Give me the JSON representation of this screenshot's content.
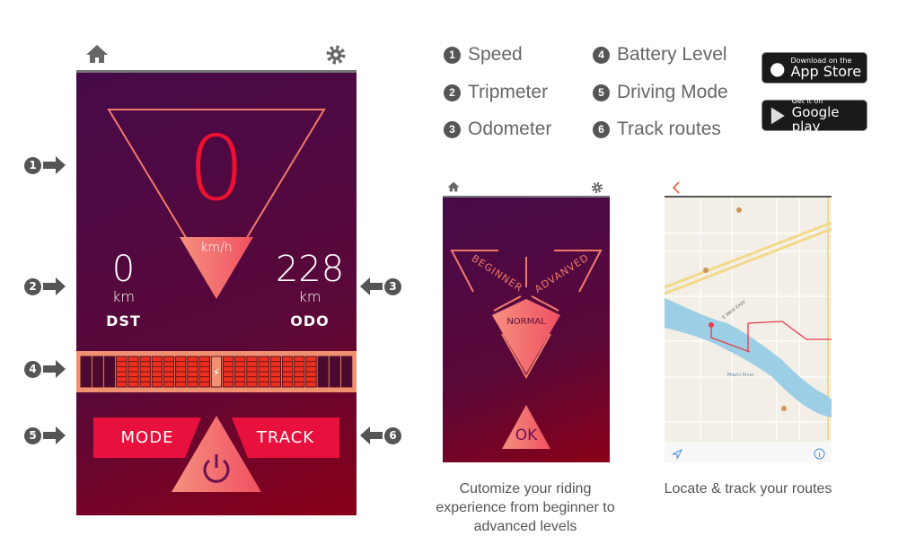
{
  "main_screen": {
    "speed": "0",
    "speed_unit": "km/h",
    "trip": {
      "value": "0",
      "unit": "km",
      "label": "DST"
    },
    "odo": {
      "value": "228",
      "unit": "km",
      "label": "ODO"
    },
    "battery_segments_filled": 17,
    "battery_segments_total": 23,
    "mode_label": "MODE",
    "track_label": "TRACK"
  },
  "callouts": [
    "1",
    "2",
    "3",
    "4",
    "5",
    "6"
  ],
  "legend": [
    {
      "num": "1",
      "label": "Speed"
    },
    {
      "num": "2",
      "label": "Tripmeter"
    },
    {
      "num": "3",
      "label": "Odometer"
    },
    {
      "num": "4",
      "label": "Battery Level"
    },
    {
      "num": "5",
      "label": "Driving Mode"
    },
    {
      "num": "6",
      "label": "Track routes"
    }
  ],
  "stores": {
    "apple": {
      "small": "Download on the",
      "big": "App Store"
    },
    "google": {
      "small": "Get it on",
      "big": "Google play"
    }
  },
  "mode_screen": {
    "beginner": "BEGINNER",
    "advanced": "ADVANVED",
    "normal": "NORMAL",
    "ok": "OK",
    "caption": "Cutomize your riding experience from beginner to advanced levels"
  },
  "map_screen": {
    "caption": "Locate & track your routes",
    "labels": [
      "E West Expy",
      "Miami River"
    ],
    "route_color": "#e83c4c"
  },
  "colors": {
    "accent": "#e8103c",
    "salmon": "#f28070",
    "bg_top": "#460a4a",
    "bg_bottom": "#8a0018"
  }
}
